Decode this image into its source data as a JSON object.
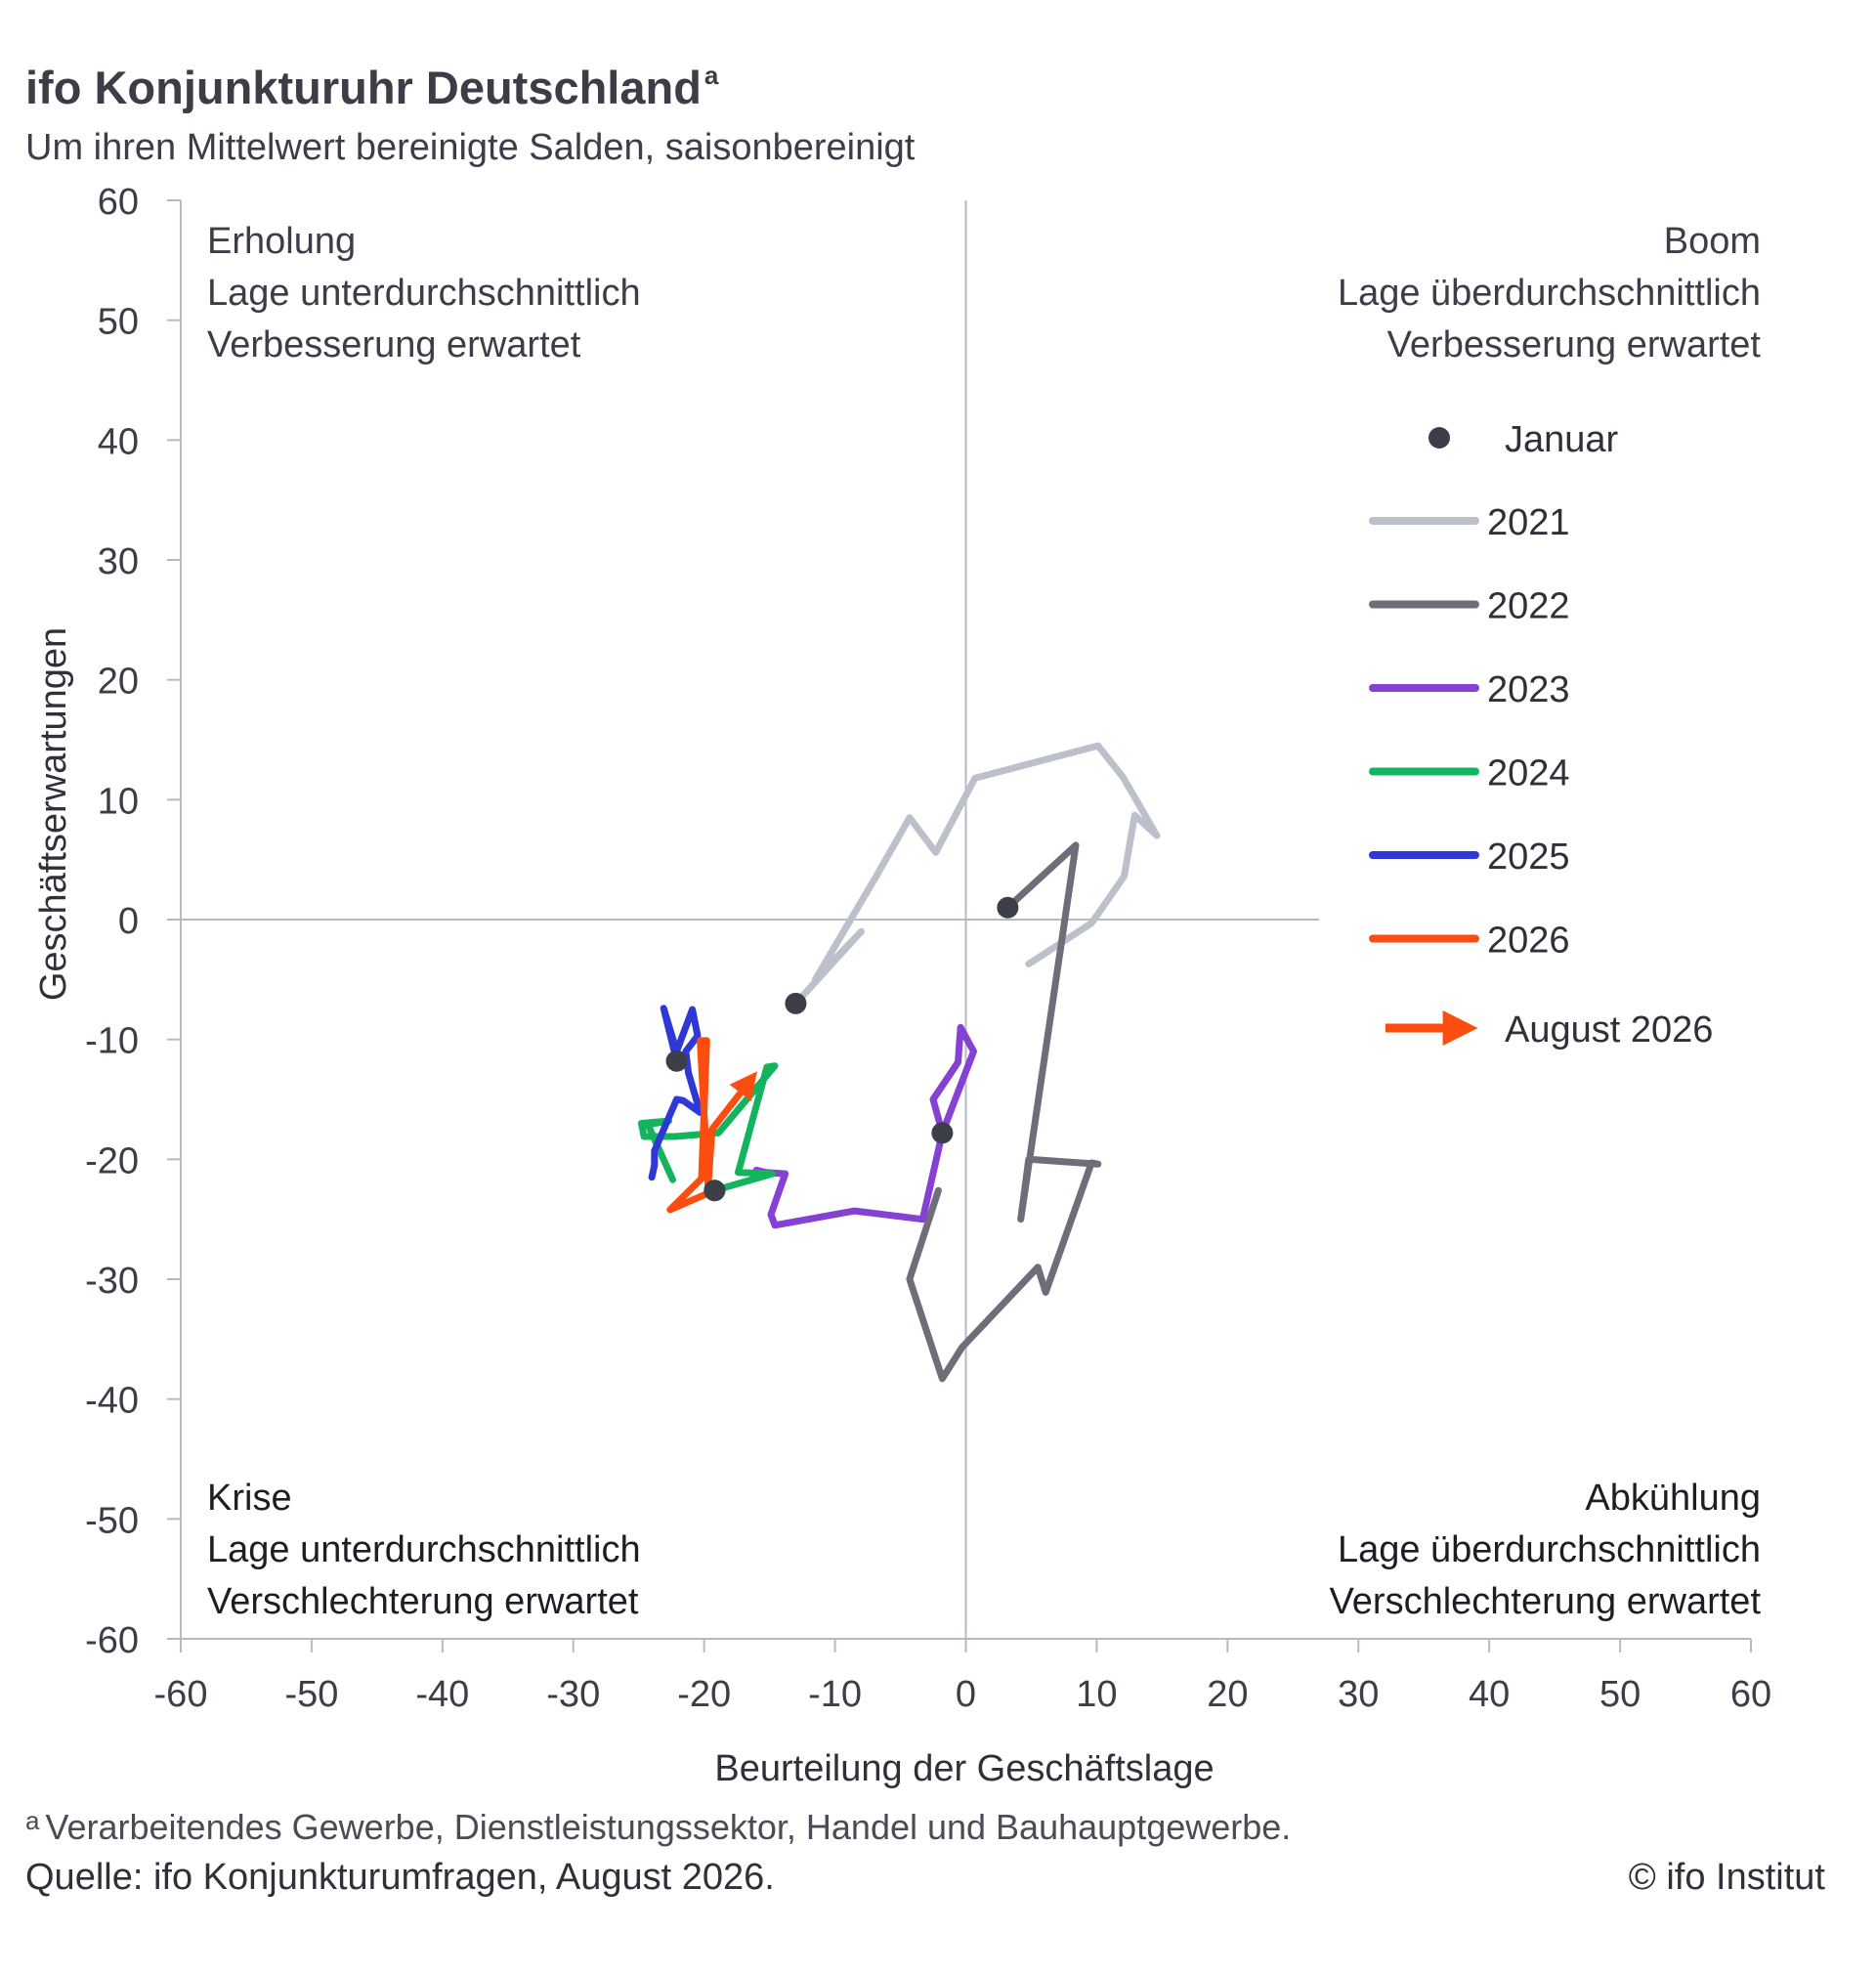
{
  "header": {
    "title": "ifo Konjunkturuhr Deutschland",
    "title_sup": "a",
    "subtitle": "Um ihren Mittelwert bereinigte Salden, saisonbereinigt"
  },
  "footer": {
    "footnote_mark": "a",
    "footnote": "Verarbeitendes Gewerbe, Dienstleistungssektor, Handel und Bauhauptgewerbe.",
    "source": "Quelle: ifo Konjunkturumfragen, August 2026.",
    "copyright": "© ifo Institut"
  },
  "quadrants": {
    "top_left": {
      "title": "Erholung",
      "line1": "Lage unterdurchschnittlich",
      "line2": "Verbesserung erwartet"
    },
    "top_right": {
      "title": "Boom",
      "line1": "Lage überdurchschnittlich",
      "line2": "Verbesserung erwartet"
    },
    "bottom_left": {
      "title": "Krise",
      "line1": "Lage unterdurchschnittlich",
      "line2": "Verschlechterung erwartet"
    },
    "bottom_right": {
      "title": "Abkühlung",
      "line1": "Lage überdurchschnittlich",
      "line2": "Verschlechterung erwartet"
    }
  },
  "legend": {
    "january": "Januar",
    "arrow_label": "August 2026"
  },
  "chart_data": {
    "type": "line",
    "xlabel": "Beurteilung der Geschäftslage",
    "ylabel": "Geschäftserwartungen",
    "xlim": [
      -60,
      60
    ],
    "ylim": [
      -60,
      60
    ],
    "xticks": [
      -60,
      -50,
      -40,
      -30,
      -20,
      -10,
      0,
      10,
      20,
      30,
      40,
      50,
      60
    ],
    "yticks": [
      60,
      50,
      40,
      30,
      20,
      10,
      0,
      -10,
      -20,
      -30,
      -40,
      -50,
      -60
    ],
    "grid": false,
    "legend_position": "right",
    "january_color": "#3c3e48",
    "series": [
      {
        "name": "2021",
        "color": "#bcc0ca",
        "points": [
          [
            -13.0,
            -7.0
          ],
          [
            -8.0,
            -1.0
          ],
          [
            -11.5,
            -5.0
          ],
          [
            -6.8,
            3.7
          ],
          [
            -4.3,
            8.5
          ],
          [
            -2.3,
            5.6
          ],
          [
            0.7,
            11.8
          ],
          [
            10.1,
            14.5
          ],
          [
            12.0,
            11.9
          ],
          [
            14.6,
            7.0
          ],
          [
            12.9,
            8.7
          ],
          [
            12.1,
            3.6
          ],
          [
            9.6,
            -0.3
          ],
          [
            4.8,
            -3.7
          ]
        ]
      },
      {
        "name": "2022",
        "color": "#6d6e79",
        "points": [
          [
            3.2,
            1.0
          ],
          [
            8.4,
            6.2
          ],
          [
            4.2,
            -25.0
          ],
          [
            4.8,
            -20.0
          ],
          [
            10.1,
            -20.4
          ],
          [
            9.6,
            -20.3
          ],
          [
            6.1,
            -31.1
          ],
          [
            5.5,
            -29.0
          ],
          [
            -0.3,
            -35.7
          ],
          [
            -1.8,
            -38.3
          ],
          [
            -4.3,
            -30.0
          ],
          [
            -2.1,
            -22.6
          ]
        ]
      },
      {
        "name": "2023",
        "color": "#8541d4",
        "points": [
          [
            -1.8,
            -17.8
          ],
          [
            -2.5,
            -15.0
          ],
          [
            -0.6,
            -11.9
          ],
          [
            -0.4,
            -9.0
          ],
          [
            0.6,
            -11.0
          ],
          [
            -1.8,
            -17.8
          ],
          [
            -3.3,
            -25.0
          ],
          [
            -8.5,
            -24.3
          ],
          [
            -14.6,
            -25.5
          ],
          [
            -14.9,
            -24.6
          ],
          [
            -13.8,
            -21.2
          ],
          [
            -15.3,
            -21.1
          ],
          [
            -16.0,
            -20.9
          ]
        ]
      },
      {
        "name": "2024",
        "color": "#14b45f",
        "points": [
          [
            -19.2,
            -22.6
          ],
          [
            -14.8,
            -21.2
          ],
          [
            -17.4,
            -21.1
          ],
          [
            -15.2,
            -12.3
          ],
          [
            -14.6,
            -12.2
          ],
          [
            -18.9,
            -17.8
          ],
          [
            -22.2,
            -18.1
          ],
          [
            -24.6,
            -18.1
          ],
          [
            -24.8,
            -17.0
          ],
          [
            -22.7,
            -16.8
          ],
          [
            -24.3,
            -17.1
          ],
          [
            -22.4,
            -21.7
          ]
        ]
      },
      {
        "name": "2025",
        "color": "#2d38d6",
        "points": [
          [
            -22.1,
            -11.8
          ],
          [
            -23.1,
            -7.4
          ],
          [
            -22.1,
            -11.0
          ],
          [
            -20.9,
            -7.5
          ],
          [
            -20.5,
            -9.7
          ],
          [
            -21.4,
            -11.0
          ],
          [
            -21.2,
            -12.8
          ],
          [
            -20.3,
            -16.1
          ],
          [
            -21.6,
            -15.1
          ],
          [
            -22.1,
            -15.0
          ],
          [
            -23.8,
            -19.3
          ],
          [
            -23.8,
            -20.5
          ],
          [
            -24.0,
            -21.5
          ]
        ]
      },
      {
        "name": "2026",
        "color": "#fb4d0f",
        "points": [
          [
            -19.2,
            -22.6
          ],
          [
            -22.6,
            -24.2
          ],
          [
            -20.2,
            -21.6
          ],
          [
            -19.8,
            -10.1
          ],
          [
            -20.3,
            -10.1
          ],
          [
            -19.7,
            -22.3
          ],
          [
            -19.4,
            -17.5
          ],
          [
            -16.4,
            -13.3
          ]
        ]
      }
    ]
  }
}
